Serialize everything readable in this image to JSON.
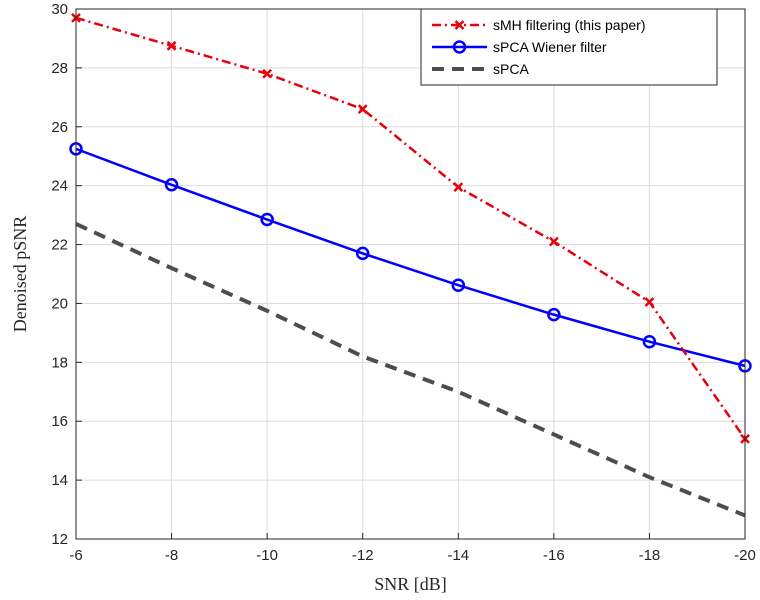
{
  "chart_data": {
    "type": "line",
    "xlabel": "SNR [dB]",
    "ylabel": "Denoised pSNR",
    "x": [
      -6,
      -8,
      -10,
      -12,
      -14,
      -16,
      -18,
      -20
    ],
    "xlim": [
      -6,
      -20
    ],
    "x_reversed": true,
    "ylim": [
      12,
      30
    ],
    "yticks": [
      12,
      14,
      16,
      18,
      20,
      22,
      24,
      26,
      28,
      30
    ],
    "grid": true,
    "legend_position": "top-right",
    "series": [
      {
        "name": "sMH filtering (this paper)",
        "values": [
          29.7,
          28.75,
          27.8,
          26.6,
          23.95,
          22.1,
          20.05,
          15.4
        ],
        "color": "#e8000b",
        "line_style": "dash-dot",
        "marker": "x"
      },
      {
        "name": "sPCA Wiener filter",
        "values": [
          25.25,
          24.03,
          22.85,
          21.7,
          20.62,
          19.62,
          18.7,
          17.88
        ],
        "color": "#0000ff",
        "line_style": "solid",
        "marker": "circle"
      },
      {
        "name": "sPCA",
        "values": [
          22.7,
          21.2,
          19.75,
          18.2,
          17.0,
          15.55,
          14.1,
          12.8
        ],
        "color": "#4d4d4d",
        "line_style": "dashed",
        "marker": "none"
      }
    ]
  }
}
